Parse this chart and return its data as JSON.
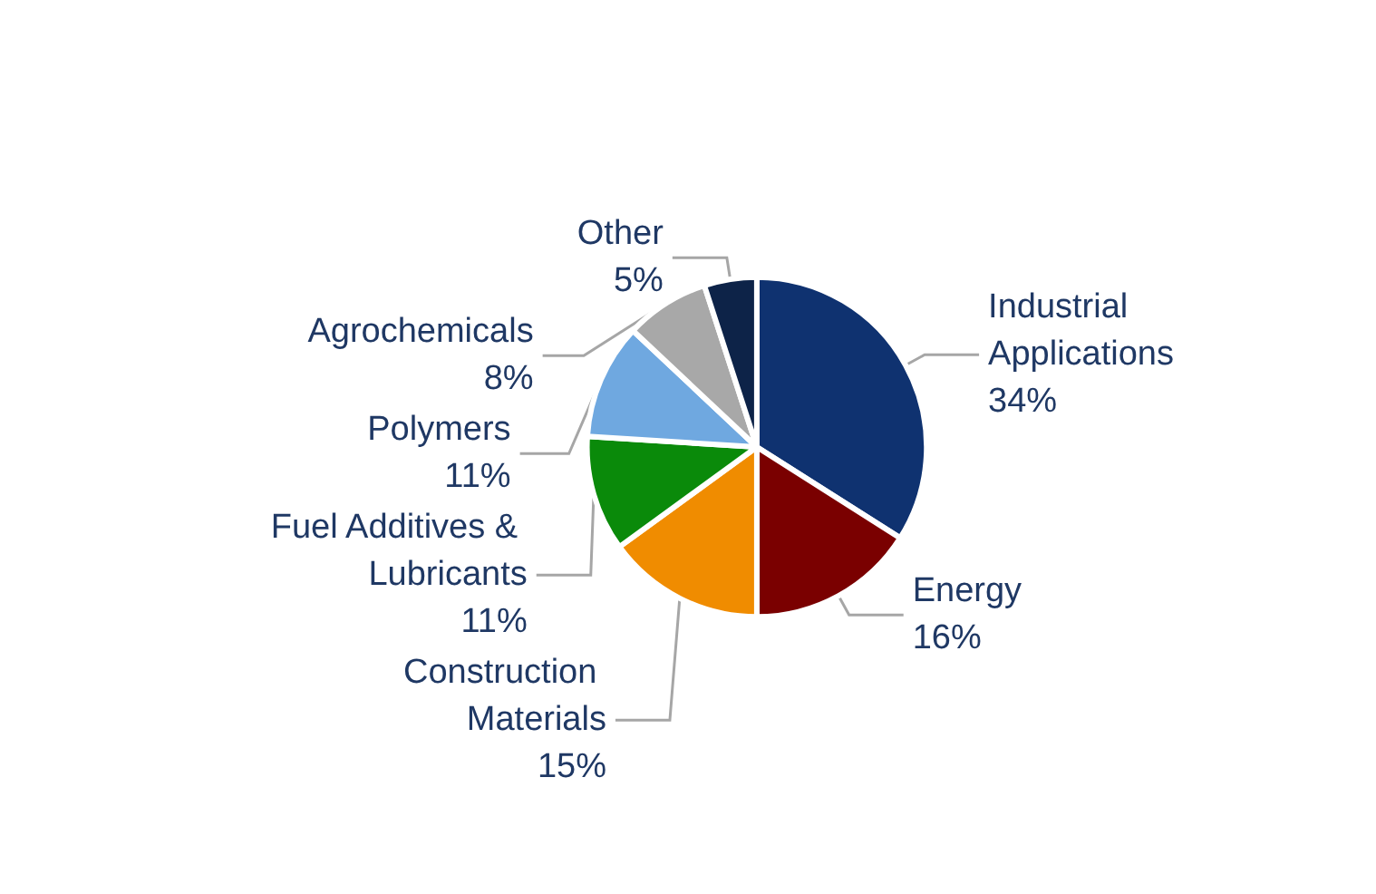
{
  "chart_data": {
    "type": "pie",
    "categories": [
      "Industrial Applications",
      "Energy",
      "Construction Materials",
      "Fuel Additives & Lubricants",
      "Polymers",
      "Agrochemicals",
      "Other"
    ],
    "values": [
      34,
      16,
      15,
      11,
      11,
      8,
      5
    ],
    "value_labels": [
      "34%",
      "16%",
      "15%",
      "11%",
      "11%",
      "8%",
      "5%"
    ],
    "colors": [
      "#0f3270",
      "#7a0000",
      "#f08c00",
      "#0a8a0a",
      "#6fa8e0",
      "#a8a8a8",
      "#0d2348"
    ],
    "legend": false
  }
}
